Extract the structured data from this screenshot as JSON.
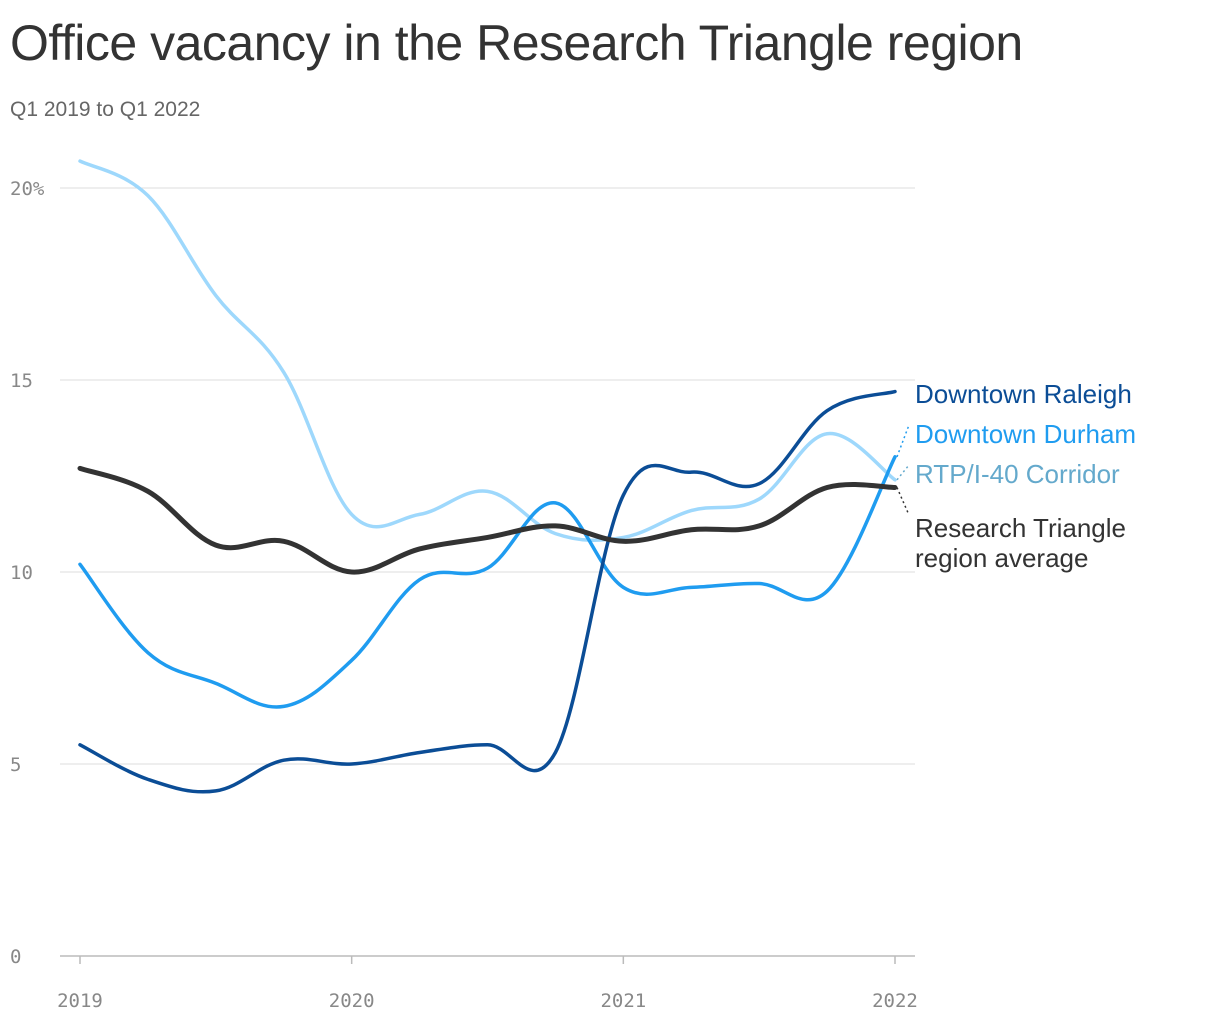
{
  "title": "Office vacancy in the Research Triangle region",
  "subtitle": "Q1 2019 to Q1 2022",
  "chart_data": {
    "type": "line",
    "title": "Office vacancy in the Research Triangle region",
    "subtitle": "Q1 2019 to Q1 2022",
    "xlabel": "",
    "ylabel": "",
    "x": [
      "Q1 2019",
      "Q2 2019",
      "Q3 2019",
      "Q4 2019",
      "Q1 2020",
      "Q2 2020",
      "Q3 2020",
      "Q4 2020",
      "Q1 2021",
      "Q2 2021",
      "Q3 2021",
      "Q4 2021",
      "Q1 2022"
    ],
    "x_ticks": [
      "2019",
      "2020",
      "2021",
      "2022"
    ],
    "y_ticks": [
      "0",
      "5",
      "10",
      "15",
      "20%"
    ],
    "y_tick_values": [
      0,
      5,
      10,
      15,
      20
    ],
    "ylim": [
      0,
      20
    ],
    "grid": true,
    "legend": "direct labels at line ends (right)",
    "series": [
      {
        "name": "Downtown Raleigh",
        "color": "#0b4d96",
        "values": [
          5.5,
          4.6,
          4.3,
          5.1,
          5.0,
          5.3,
          5.5,
          5.3,
          12.0,
          12.6,
          12.3,
          14.2,
          14.7
        ]
      },
      {
        "name": "Downtown Durham",
        "color": "#1f9cf0",
        "values": [
          10.2,
          7.9,
          7.1,
          6.5,
          7.7,
          9.8,
          10.1,
          11.8,
          9.6,
          9.6,
          9.7,
          9.5,
          13.0
        ]
      },
      {
        "name": "RTP/I-40 Corridor",
        "color": "#9ed8fc",
        "label_color": "#64a9cc",
        "values": [
          20.7,
          19.8,
          17.2,
          15.2,
          11.5,
          11.5,
          12.1,
          11.0,
          10.9,
          11.6,
          11.9,
          13.6,
          12.4
        ]
      },
      {
        "name": "Research Triangle region average",
        "label_lines": [
          "Research Triangle",
          "region average"
        ],
        "color": "#333333",
        "values": [
          12.7,
          12.1,
          10.7,
          10.8,
          10.0,
          10.6,
          10.9,
          11.2,
          10.8,
          11.1,
          11.2,
          12.2,
          12.2
        ]
      }
    ]
  }
}
